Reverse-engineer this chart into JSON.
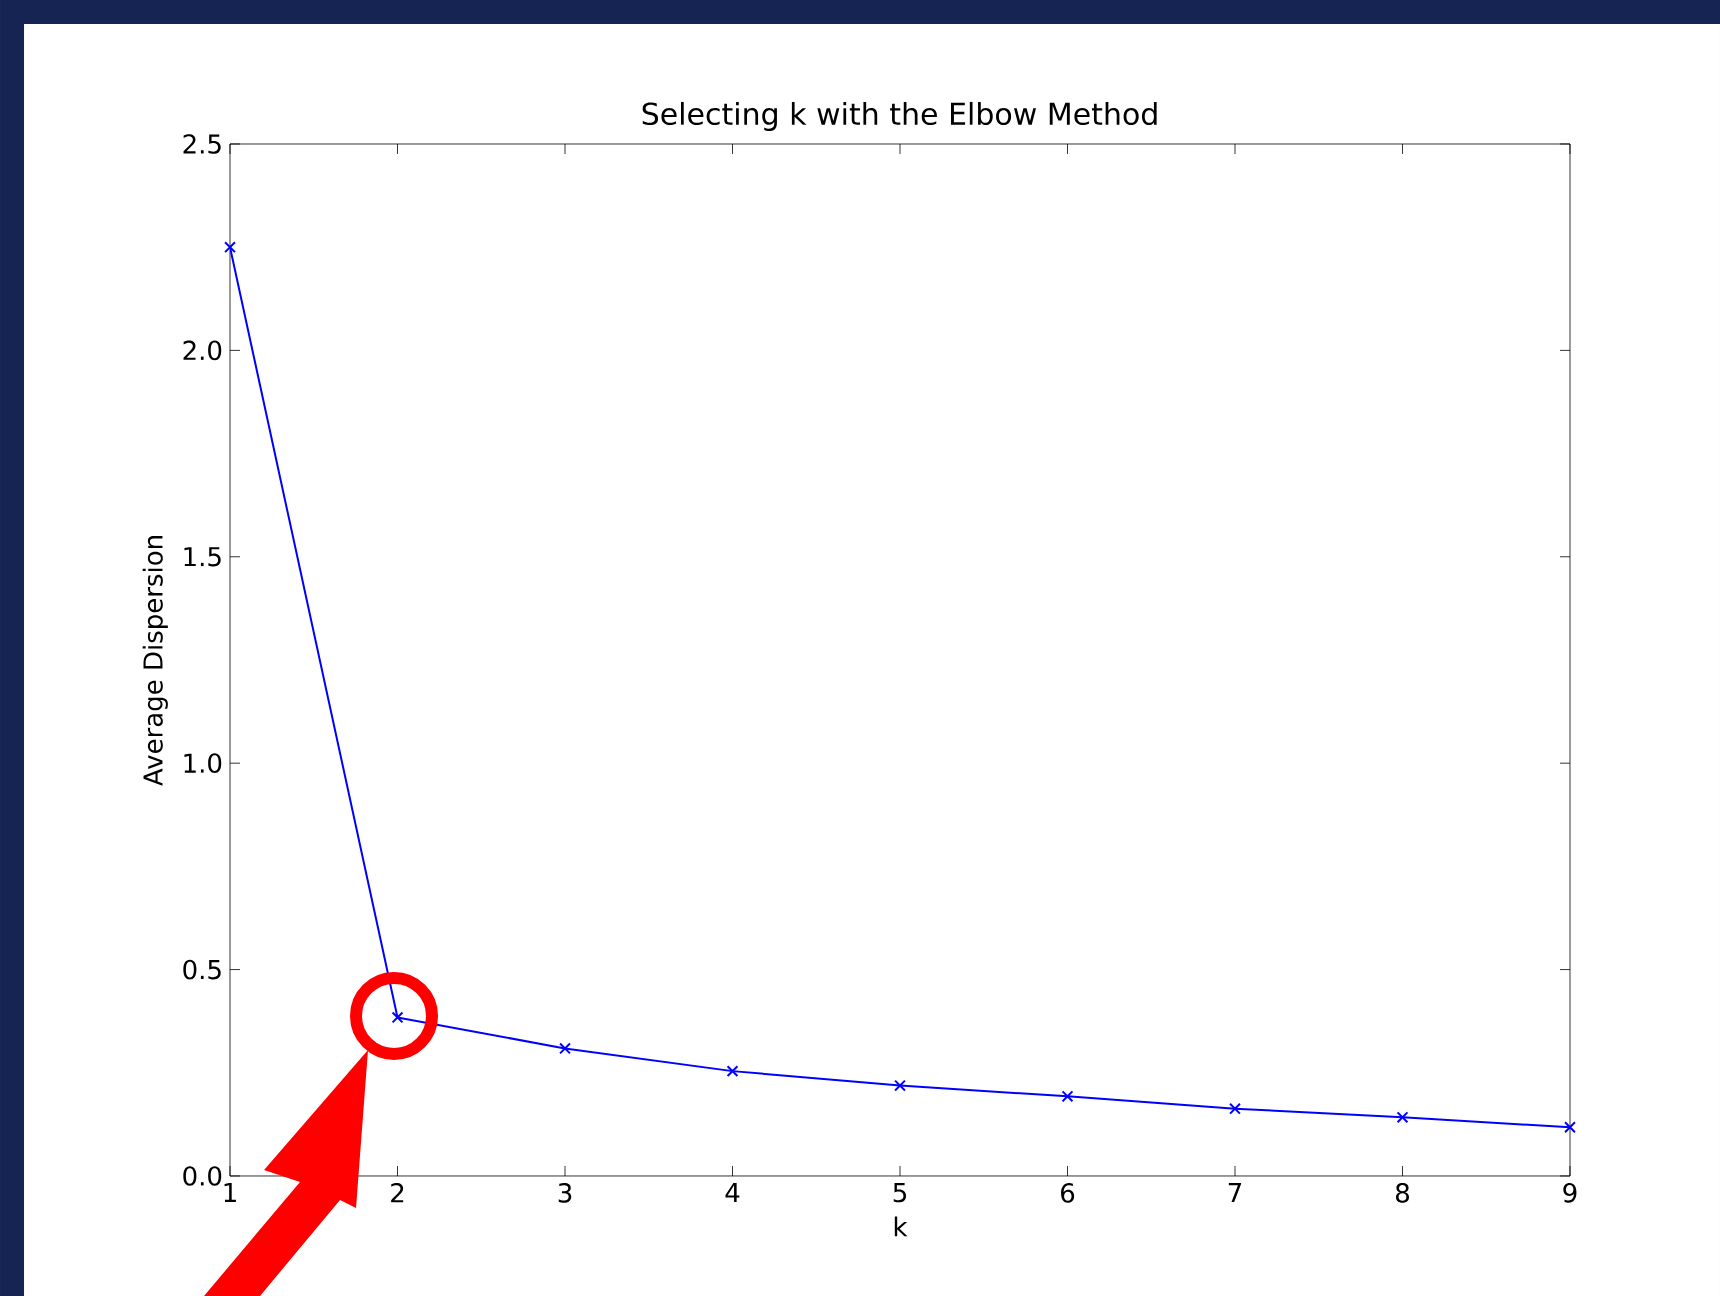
{
  "chart_data": {
    "type": "line",
    "title": "Selecting k with the Elbow Method",
    "xlabel": "k",
    "ylabel": "Average Dispersion",
    "x": [
      1,
      2,
      3,
      4,
      5,
      6,
      7,
      8,
      9
    ],
    "series": [
      {
        "color": "#0000ff",
        "values": [
          2.25,
          0.384,
          0.309,
          0.254,
          0.219,
          0.193,
          0.163,
          0.142,
          0.118
        ]
      }
    ],
    "xlim": [
      1,
      9
    ],
    "xticks": [
      1,
      2,
      3,
      4,
      5,
      6,
      7,
      8,
      9
    ],
    "ylim": [
      0,
      2.5
    ],
    "yticks": [
      {
        "value": 0,
        "label": "0.0"
      },
      0.5,
      {
        "value": 1,
        "label": "1.0"
      },
      1.5,
      {
        "value": 2,
        "label": "2.0"
      },
      2.5
    ],
    "grid": false,
    "legend": false,
    "marker": "cross",
    "line_style": "solid"
  }
}
